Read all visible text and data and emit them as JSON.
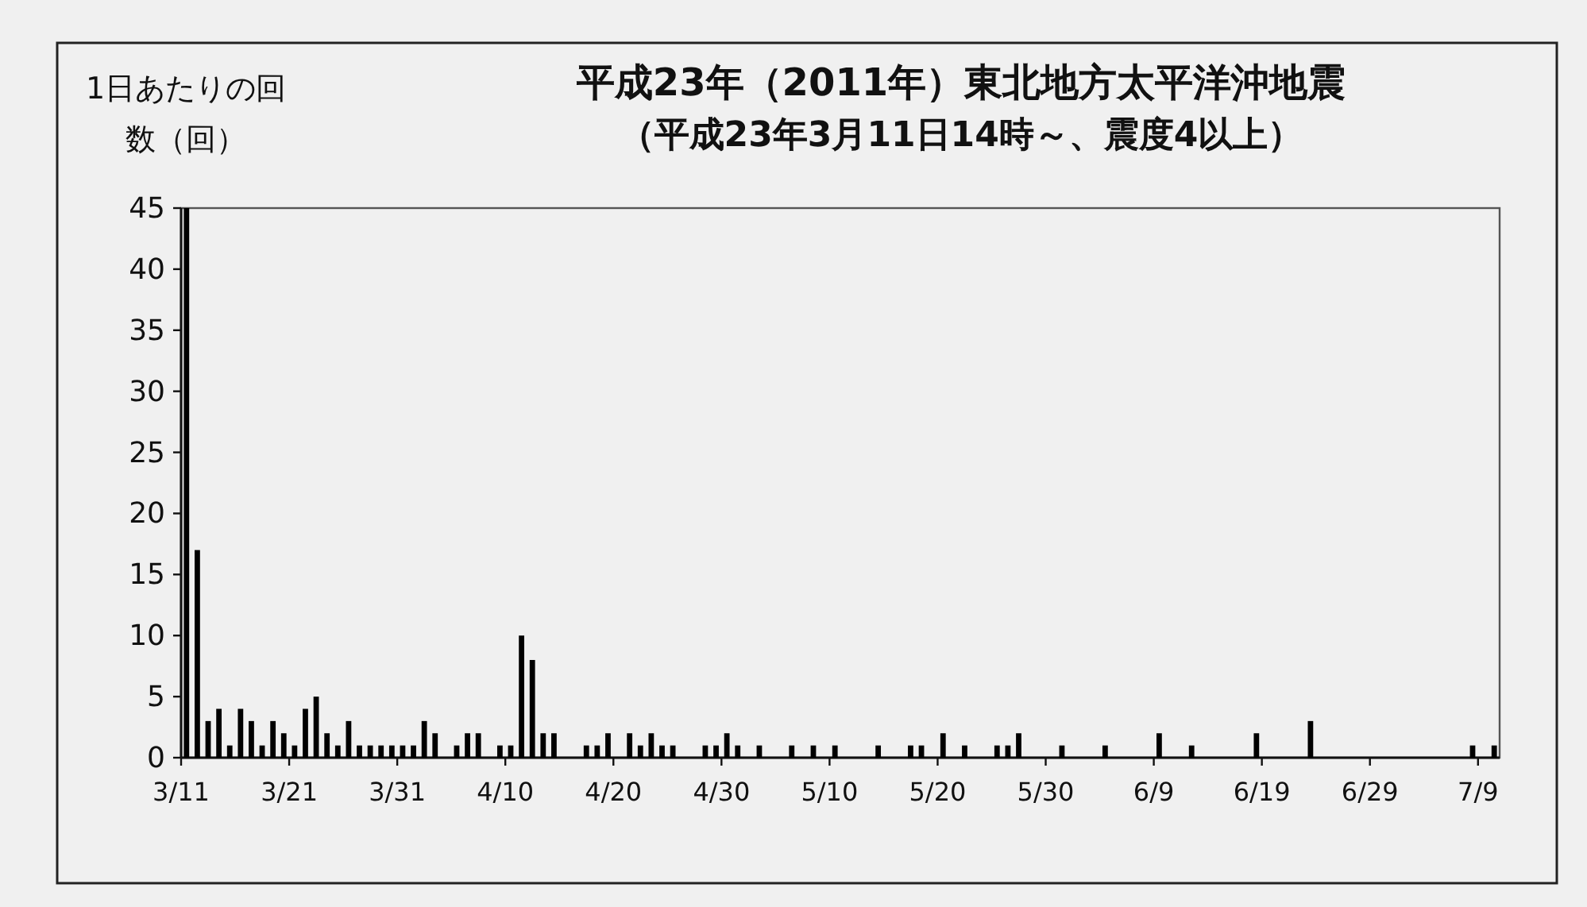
{
  "chart_data": {
    "type": "bar",
    "title": "平成23年（2011年）東北地方太平洋沖地震",
    "subtitle": "（平成23年3月11日14時～、震度4以上）",
    "ylabel": "1日あたりの回数（回）",
    "color": "#000000",
    "x": [
      "2011-03-11",
      "2011-03-12",
      "2011-03-13",
      "2011-03-14",
      "2011-03-15",
      "2011-03-16",
      "2011-03-17",
      "2011-03-18",
      "2011-03-19",
      "2011-03-20",
      "2011-03-21",
      "2011-03-22",
      "2011-03-23",
      "2011-03-24",
      "2011-03-25",
      "2011-03-26",
      "2011-03-27",
      "2011-03-28",
      "2011-03-29",
      "2011-03-30",
      "2011-03-31",
      "2011-04-01",
      "2011-04-02",
      "2011-04-03",
      "2011-04-04",
      "2011-04-05",
      "2011-04-06",
      "2011-04-07",
      "2011-04-08",
      "2011-04-09",
      "2011-04-10",
      "2011-04-11",
      "2011-04-12",
      "2011-04-13",
      "2011-04-14",
      "2011-04-15",
      "2011-04-16",
      "2011-04-17",
      "2011-04-18",
      "2011-04-19",
      "2011-04-20",
      "2011-04-21",
      "2011-04-22",
      "2011-04-23",
      "2011-04-24",
      "2011-04-25",
      "2011-04-26",
      "2011-04-27",
      "2011-04-28",
      "2011-04-29",
      "2011-04-30",
      "2011-05-01",
      "2011-05-02",
      "2011-05-03",
      "2011-05-04",
      "2011-05-05",
      "2011-05-06",
      "2011-05-07",
      "2011-05-08",
      "2011-05-09",
      "2011-05-10",
      "2011-05-11",
      "2011-05-12",
      "2011-05-13",
      "2011-05-14",
      "2011-05-15",
      "2011-05-16",
      "2011-05-17",
      "2011-05-18",
      "2011-05-19",
      "2011-05-20",
      "2011-05-21",
      "2011-05-22",
      "2011-05-23",
      "2011-05-24",
      "2011-05-25",
      "2011-05-26",
      "2011-05-27",
      "2011-05-28",
      "2011-05-29",
      "2011-05-30",
      "2011-05-31",
      "2011-06-01",
      "2011-06-02",
      "2011-06-03",
      "2011-06-04",
      "2011-06-05",
      "2011-06-06",
      "2011-06-07",
      "2011-06-08",
      "2011-06-09",
      "2011-06-10",
      "2011-06-11",
      "2011-06-12",
      "2011-06-13",
      "2011-06-14",
      "2011-06-15",
      "2011-06-16",
      "2011-06-17",
      "2011-06-18",
      "2011-06-19",
      "2011-06-20",
      "2011-06-21",
      "2011-06-22",
      "2011-06-23",
      "2011-06-24",
      "2011-06-25",
      "2011-06-26",
      "2011-06-27",
      "2011-06-28",
      "2011-06-29",
      "2011-06-30",
      "2011-07-01",
      "2011-07-02",
      "2011-07-03",
      "2011-07-04",
      "2011-07-05",
      "2011-07-06",
      "2011-07-07",
      "2011-07-08",
      "2011-07-09",
      "2011-07-10"
    ],
    "values": [
      45,
      17,
      3,
      4,
      1,
      4,
      3,
      1,
      3,
      2,
      1,
      4,
      5,
      2,
      1,
      3,
      1,
      1,
      1,
      1,
      1,
      1,
      3,
      2,
      0,
      1,
      2,
      2,
      0,
      1,
      1,
      10,
      8,
      2,
      2,
      0,
      0,
      1,
      1,
      2,
      0,
      2,
      1,
      2,
      1,
      1,
      0,
      0,
      1,
      1,
      2,
      1,
      0,
      1,
      0,
      0,
      1,
      0,
      1,
      0,
      1,
      0,
      0,
      0,
      1,
      0,
      0,
      1,
      1,
      0,
      2,
      0,
      1,
      0,
      0,
      1,
      1,
      2,
      0,
      0,
      0,
      1,
      0,
      0,
      0,
      1,
      0,
      0,
      0,
      0,
      2,
      0,
      0,
      1,
      0,
      0,
      0,
      0,
      0,
      2,
      0,
      0,
      0,
      0,
      3,
      0,
      0,
      0,
      0,
      0,
      0,
      0,
      0,
      0,
      0,
      0,
      0,
      0,
      0,
      1,
      0,
      1
    ],
    "xlim": [
      "2011-03-11",
      "2011-07-11"
    ],
    "xticks": [
      {
        "value": "2011-03-11",
        "label": "3/11"
      },
      {
        "value": "2011-03-21",
        "label": "3/21"
      },
      {
        "value": "2011-03-31",
        "label": "3/31"
      },
      {
        "value": "2011-04-10",
        "label": "4/10"
      },
      {
        "value": "2011-04-20",
        "label": "4/20"
      },
      {
        "value": "2011-04-30",
        "label": "4/30"
      },
      {
        "value": "2011-05-10",
        "label": "5/10"
      },
      {
        "value": "2011-05-20",
        "label": "5/20"
      },
      {
        "value": "2011-05-30",
        "label": "5/30"
      },
      {
        "value": "2011-06-09",
        "label": "6/9"
      },
      {
        "value": "2011-06-19",
        "label": "6/19"
      },
      {
        "value": "2011-06-29",
        "label": "6/29"
      },
      {
        "value": "2011-07-09",
        "label": "7/9"
      }
    ],
    "ylim": [
      0,
      45
    ],
    "yticks": [
      0,
      5,
      10,
      15,
      20,
      25,
      30,
      35,
      40,
      45
    ]
  }
}
